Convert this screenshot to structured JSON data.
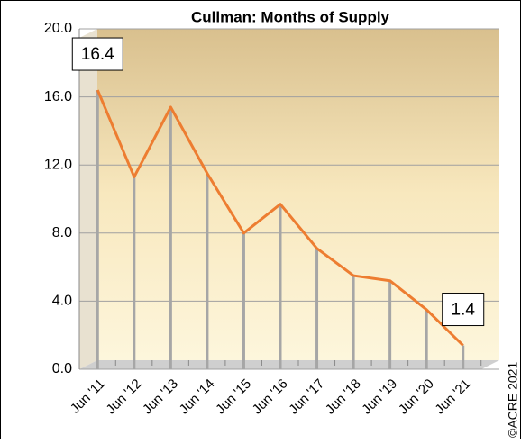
{
  "chart_data": {
    "type": "line",
    "title": "Cullman: Months of Supply",
    "categories": [
      "Jun '11",
      "Jun '12",
      "Jun '13",
      "Jun '14",
      "Jun '15",
      "Jun '16",
      "Jun '17",
      "Jun '18",
      "Jun '19",
      "Jun '20",
      "Jun '21"
    ],
    "series": [
      {
        "name": "Months of Supply",
        "color": "#ed7d31",
        "values": [
          16.4,
          11.3,
          15.4,
          11.5,
          8.0,
          9.7,
          7.1,
          5.5,
          5.2,
          3.5,
          1.4
        ],
        "value_labels": [
          "16.4",
          null,
          null,
          null,
          null,
          null,
          null,
          null,
          null,
          null,
          "1.4"
        ]
      }
    ],
    "ylim": [
      0,
      20
    ],
    "yticks": [
      {
        "value": 0,
        "label": "0.0"
      },
      {
        "value": 4,
        "label": "4.0"
      },
      {
        "value": 8,
        "label": "8.0"
      },
      {
        "value": 12,
        "label": "12.0"
      },
      {
        "value": 16,
        "label": "16.0"
      },
      {
        "value": 20,
        "label": "20.0"
      }
    ],
    "grid": true,
    "drop_line_color": "#a6a6a6",
    "annotations": [
      "©ACRE 2021"
    ]
  }
}
